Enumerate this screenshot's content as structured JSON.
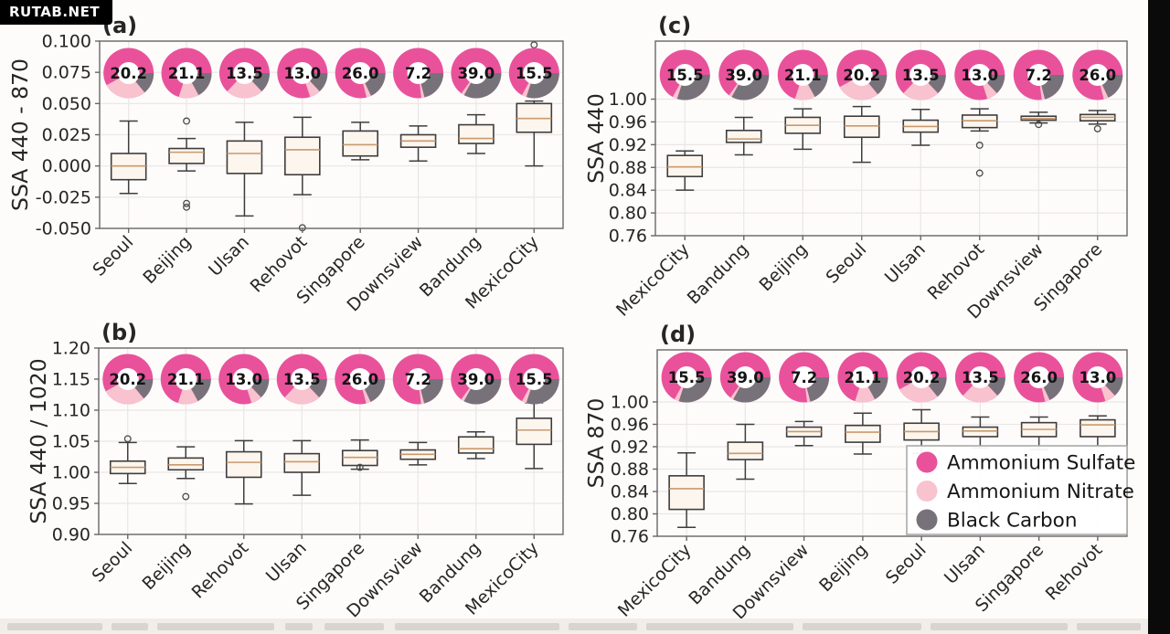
{
  "watermark": {
    "text": "RUTAB.NET"
  },
  "palette": {
    "sulfate": "#e9529b",
    "nitrate": "#f9c2cf",
    "black_carbon": "#77727a",
    "box_fill": "#fcf6ee",
    "box_edge": "#3f3c3c",
    "median": "#c9996e",
    "grid": "#eae6e6",
    "spine": "#6a6667",
    "text": "#262626",
    "outlier": "#4a4a4a",
    "legend_border": "#aaaaaa"
  },
  "legend": {
    "entries": [
      {
        "label": "Ammonium Sulfate",
        "key": "sulfate"
      },
      {
        "label": "Ammonium Nitrate",
        "key": "nitrate"
      },
      {
        "label": "Black Carbon",
        "key": "black_carbon"
      }
    ]
  },
  "cities": {
    "Seoul": {
      "donut_value": "20.2",
      "sulfate": 58,
      "nitrate": 28,
      "black_carbon": 14
    },
    "Beijing": {
      "donut_value": "21.1",
      "sulfate": 70,
      "nitrate": 13,
      "black_carbon": 17
    },
    "Ulsan": {
      "donut_value": "13.5",
      "sulfate": 63,
      "nitrate": 24,
      "black_carbon": 13
    },
    "Rehovot": {
      "donut_value": "13.0",
      "sulfate": 80,
      "nitrate": 7,
      "black_carbon": 13
    },
    "Singapore": {
      "donut_value": "26.0",
      "sulfate": 79,
      "nitrate": 3,
      "black_carbon": 18
    },
    "Downsview": {
      "donut_value": "7.2",
      "sulfate": 77,
      "nitrate": 2,
      "black_carbon": 21
    },
    "Bandung": {
      "donut_value": "39.0",
      "sulfate": 65,
      "nitrate": 2,
      "black_carbon": 33
    },
    "MexicoCity": {
      "donut_value": "15.5",
      "sulfate": 67,
      "nitrate": 3,
      "black_carbon": 30
    }
  },
  "chart_data": [
    {
      "type": "box",
      "panel": "a",
      "letter": "(a)",
      "ylabel": "SSA 440 - 870",
      "ylim": [
        -0.05,
        0.1
      ],
      "yticks": [
        0.1,
        0.075,
        0.05,
        0.025,
        0.0,
        -0.025,
        -0.05
      ],
      "ytick_labels": [
        "0.100",
        "0.075",
        "0.050",
        "0.025",
        "0.000",
        "-0.025",
        "-0.050"
      ],
      "grid": true,
      "categories": [
        "Seoul",
        "Beijing",
        "Ulsan",
        "Rehovot",
        "Singapore",
        "Downsview",
        "Bandung",
        "MexicoCity"
      ],
      "donut_values": [
        "20.2",
        "21.1",
        "13.5",
        "13.0",
        "26.0",
        "7.2",
        "39.0",
        "15.5"
      ],
      "boxes": [
        {
          "whisker_low": -0.022,
          "q1": -0.011,
          "median": 0.0,
          "q3": 0.01,
          "whisker_high": 0.036,
          "outliers": []
        },
        {
          "whisker_low": -0.004,
          "q1": 0.002,
          "median": 0.011,
          "q3": 0.014,
          "whisker_high": 0.022,
          "outliers": [
            0.036,
            -0.03,
            -0.033
          ]
        },
        {
          "whisker_low": -0.04,
          "q1": -0.006,
          "median": 0.01,
          "q3": 0.02,
          "whisker_high": 0.035,
          "outliers": []
        },
        {
          "whisker_low": -0.023,
          "q1": -0.007,
          "median": 0.013,
          "q3": 0.023,
          "whisker_high": 0.039,
          "outliers": [
            -0.0495
          ]
        },
        {
          "whisker_low": 0.005,
          "q1": 0.008,
          "median": 0.017,
          "q3": 0.028,
          "whisker_high": 0.035,
          "outliers": []
        },
        {
          "whisker_low": 0.004,
          "q1": 0.015,
          "median": 0.02,
          "q3": 0.025,
          "whisker_high": 0.032,
          "outliers": []
        },
        {
          "whisker_low": 0.01,
          "q1": 0.018,
          "median": 0.022,
          "q3": 0.033,
          "whisker_high": 0.041,
          "outliers": []
        },
        {
          "whisker_low": 0.0,
          "q1": 0.027,
          "median": 0.038,
          "q3": 0.05,
          "whisker_high": 0.052,
          "outliers": [
            0.097
          ]
        }
      ]
    },
    {
      "type": "box",
      "panel": "b",
      "letter": "(b)",
      "ylabel": "SSA 440 / 1020",
      "ylim": [
        0.9,
        1.2
      ],
      "yticks": [
        1.2,
        1.15,
        1.1,
        1.05,
        1.0,
        0.95,
        0.9
      ],
      "ytick_labels": [
        "1.20",
        "1.15",
        "1.10",
        "1.05",
        "1.00",
        "0.95",
        "0.90"
      ],
      "grid": true,
      "categories": [
        "Seoul",
        "Beijing",
        "Rehovot",
        "Ulsan",
        "Singapore",
        "Downsview",
        "Bandung",
        "MexicoCity"
      ],
      "donut_values": [
        "20.2",
        "21.1",
        "13.0",
        "13.5",
        "26.0",
        "7.2",
        "39.0",
        "15.5"
      ],
      "boxes": [
        {
          "whisker_low": 0.982,
          "q1": 0.998,
          "median": 1.008,
          "q3": 1.018,
          "whisker_high": 1.048,
          "outliers": [
            1.054
          ]
        },
        {
          "whisker_low": 0.99,
          "q1": 1.004,
          "median": 1.012,
          "q3": 1.023,
          "whisker_high": 1.041,
          "outliers": [
            0.961
          ]
        },
        {
          "whisker_low": 0.949,
          "q1": 0.992,
          "median": 1.016,
          "q3": 1.033,
          "whisker_high": 1.051,
          "outliers": []
        },
        {
          "whisker_low": 0.963,
          "q1": 1.0,
          "median": 1.017,
          "q3": 1.03,
          "whisker_high": 1.051,
          "outliers": []
        },
        {
          "whisker_low": 1.005,
          "q1": 1.011,
          "median": 1.024,
          "q3": 1.035,
          "whisker_high": 1.052,
          "outliers": [
            1.008
          ]
        },
        {
          "whisker_low": 1.012,
          "q1": 1.021,
          "median": 1.029,
          "q3": 1.036,
          "whisker_high": 1.048,
          "outliers": []
        },
        {
          "whisker_low": 1.022,
          "q1": 1.031,
          "median": 1.038,
          "q3": 1.057,
          "whisker_high": 1.065,
          "outliers": []
        },
        {
          "whisker_low": 1.006,
          "q1": 1.045,
          "median": 1.068,
          "q3": 1.087,
          "whisker_high": 1.112,
          "outliers": []
        }
      ]
    },
    {
      "type": "box",
      "panel": "c",
      "letter": "(c)",
      "ylabel": "SSA 440",
      "ylim": [
        0.76,
        1.102
      ],
      "yticks": [
        1.0,
        0.96,
        0.92,
        0.88,
        0.84,
        0.8,
        0.76
      ],
      "ytick_labels": [
        "1.00",
        "0.96",
        "0.92",
        "0.88",
        "0.84",
        "0.80",
        "0.76"
      ],
      "grid": true,
      "categories": [
        "MexicoCity",
        "Bandung",
        "Beijing",
        "Seoul",
        "Ulsan",
        "Rehovot",
        "Downsview",
        "Singapore"
      ],
      "donut_values": [
        "15.5",
        "39.0",
        "21.1",
        "20.2",
        "13.5",
        "13.0",
        "7.2",
        "26.0"
      ],
      "boxes": [
        {
          "whisker_low": 0.84,
          "q1": 0.864,
          "median": 0.881,
          "q3": 0.901,
          "whisker_high": 0.909,
          "outliers": []
        },
        {
          "whisker_low": 0.902,
          "q1": 0.924,
          "median": 0.93,
          "q3": 0.945,
          "whisker_high": 0.968,
          "outliers": []
        },
        {
          "whisker_low": 0.912,
          "q1": 0.94,
          "median": 0.954,
          "q3": 0.968,
          "whisker_high": 0.983,
          "outliers": []
        },
        {
          "whisker_low": 0.889,
          "q1": 0.933,
          "median": 0.953,
          "q3": 0.97,
          "whisker_high": 0.987,
          "outliers": []
        },
        {
          "whisker_low": 0.919,
          "q1": 0.942,
          "median": 0.952,
          "q3": 0.963,
          "whisker_high": 0.982,
          "outliers": []
        },
        {
          "whisker_low": 0.944,
          "q1": 0.95,
          "median": 0.962,
          "q3": 0.972,
          "whisker_high": 0.983,
          "outliers": [
            0.919,
            0.87
          ]
        },
        {
          "whisker_low": 0.958,
          "q1": 0.963,
          "median": 0.966,
          "q3": 0.97,
          "whisker_high": 0.977,
          "outliers": [
            0.9555
          ]
        },
        {
          "whisker_low": 0.956,
          "q1": 0.962,
          "median": 0.968,
          "q3": 0.973,
          "whisker_high": 0.98,
          "outliers": [
            0.948
          ]
        }
      ]
    },
    {
      "type": "box",
      "panel": "d",
      "letter": "(d)",
      "ylabel": "SSA 870",
      "ylim": [
        0.76,
        1.093
      ],
      "yticks": [
        1.0,
        0.96,
        0.92,
        0.88,
        0.84,
        0.8,
        0.76
      ],
      "ytick_labels": [
        "1.00",
        "0.96",
        "0.92",
        "0.88",
        "0.84",
        "0.80",
        "0.76"
      ],
      "grid": true,
      "legend": true,
      "categories": [
        "MexicoCity",
        "Bandung",
        "Downsview",
        "Beijing",
        "Seoul",
        "Ulsan",
        "Singapore",
        "Rehovot"
      ],
      "donut_values": [
        "15.5",
        "39.0",
        "7.2",
        "21.1",
        "20.2",
        "13.5",
        "26.0",
        "13.0"
      ],
      "boxes": [
        {
          "whisker_low": 0.776,
          "q1": 0.808,
          "median": 0.845,
          "q3": 0.868,
          "whisker_high": 0.909,
          "outliers": []
        },
        {
          "whisker_low": 0.862,
          "q1": 0.897,
          "median": 0.908,
          "q3": 0.928,
          "whisker_high": 0.96,
          "outliers": []
        },
        {
          "whisker_low": 0.922,
          "q1": 0.938,
          "median": 0.947,
          "q3": 0.955,
          "whisker_high": 0.965,
          "outliers": []
        },
        {
          "whisker_low": 0.907,
          "q1": 0.928,
          "median": 0.946,
          "q3": 0.958,
          "whisker_high": 0.98,
          "outliers": []
        },
        {
          "whisker_low": 0.908,
          "q1": 0.932,
          "median": 0.947,
          "q3": 0.962,
          "whisker_high": 0.986,
          "outliers": []
        },
        {
          "whisker_low": 0.918,
          "q1": 0.938,
          "median": 0.948,
          "q3": 0.955,
          "whisker_high": 0.973,
          "outliers": []
        },
        {
          "whisker_low": 0.915,
          "q1": 0.938,
          "median": 0.951,
          "q3": 0.963,
          "whisker_high": 0.973,
          "outliers": []
        },
        {
          "whisker_low": 0.92,
          "q1": 0.938,
          "median": 0.959,
          "q3": 0.968,
          "whisker_high": 0.975,
          "outliers": []
        }
      ]
    }
  ]
}
